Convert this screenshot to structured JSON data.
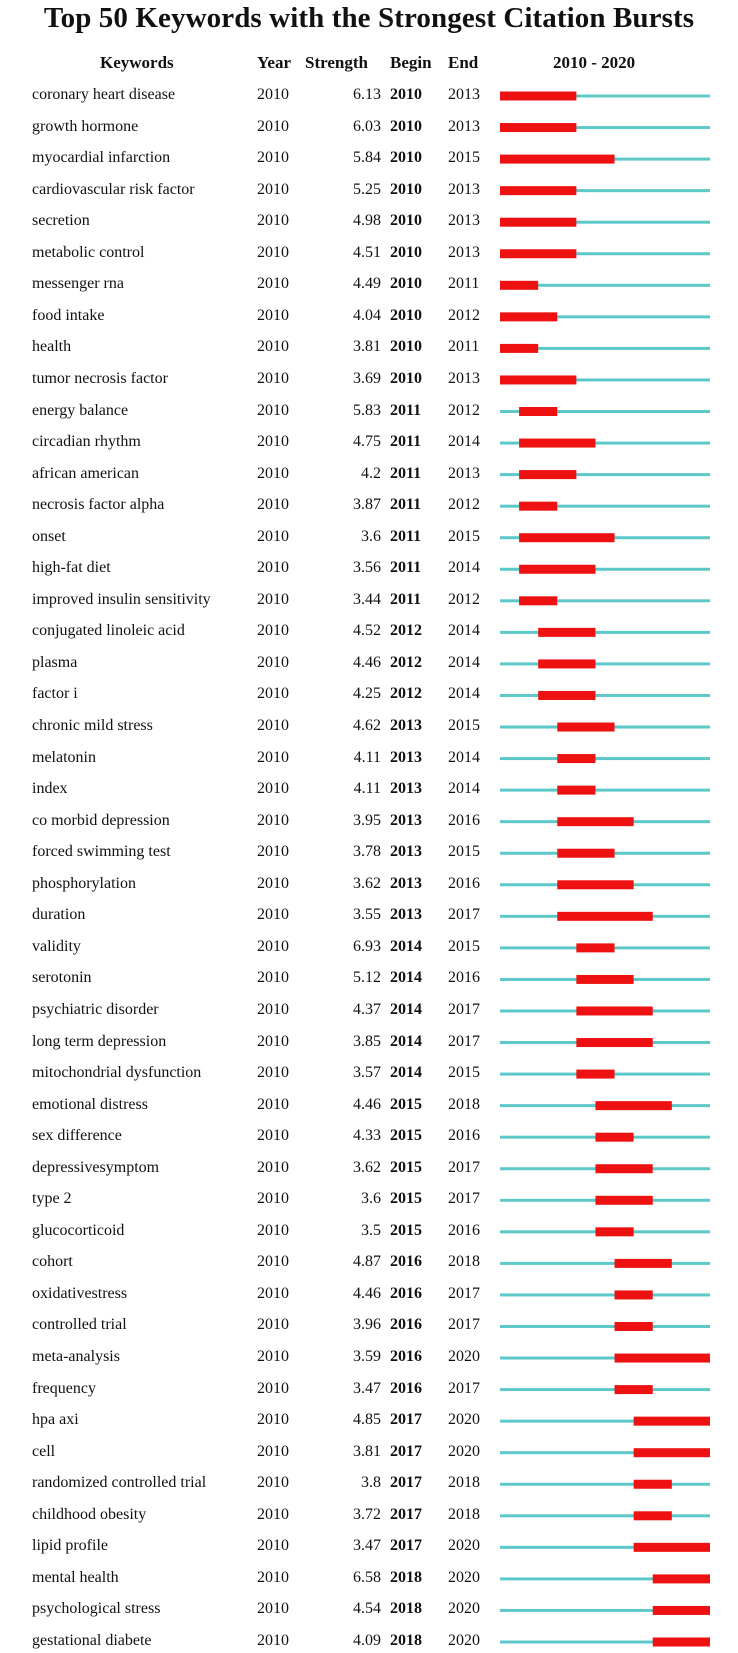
{
  "chart_data": {
    "type": "table",
    "title": "Top 50 Keywords with the Strongest Citation Bursts",
    "columns": [
      "Keywords",
      "Year",
      "Strength",
      "Begin",
      "End",
      "2010 - 2020"
    ],
    "timeline": {
      "start": 2010,
      "end": 2020
    },
    "colors": {
      "background_line": "#5cc8c8",
      "burst": "#ee1111"
    },
    "rows": [
      {
        "keyword": "coronary heart disease",
        "year": "2010",
        "strength": "6.13",
        "begin": "2010",
        "end": "2013"
      },
      {
        "keyword": "growth hormone",
        "year": "2010",
        "strength": "6.03",
        "begin": "2010",
        "end": "2013"
      },
      {
        "keyword": "myocardial infarction",
        "year": "2010",
        "strength": "5.84",
        "begin": "2010",
        "end": "2015"
      },
      {
        "keyword": "cardiovascular risk factor",
        "year": "2010",
        "strength": "5.25",
        "begin": "2010",
        "end": "2013"
      },
      {
        "keyword": "secretion",
        "year": "2010",
        "strength": "4.98",
        "begin": "2010",
        "end": "2013"
      },
      {
        "keyword": "metabolic control",
        "year": "2010",
        "strength": "4.51",
        "begin": "2010",
        "end": "2013"
      },
      {
        "keyword": "messenger rna",
        "year": "2010",
        "strength": "4.49",
        "begin": "2010",
        "end": "2011"
      },
      {
        "keyword": "food intake",
        "year": "2010",
        "strength": "4.04",
        "begin": "2010",
        "end": "2012"
      },
      {
        "keyword": "health",
        "year": "2010",
        "strength": "3.81",
        "begin": "2010",
        "end": "2011"
      },
      {
        "keyword": "tumor necrosis factor",
        "year": "2010",
        "strength": "3.69",
        "begin": "2010",
        "end": "2013"
      },
      {
        "keyword": "energy balance",
        "year": "2010",
        "strength": "5.83",
        "begin": "2011",
        "end": "2012"
      },
      {
        "keyword": "circadian rhythm",
        "year": "2010",
        "strength": "4.75",
        "begin": "2011",
        "end": "2014"
      },
      {
        "keyword": "african american",
        "year": "2010",
        "strength": "4.2",
        "begin": "2011",
        "end": "2013"
      },
      {
        "keyword": "necrosis factor alpha",
        "year": "2010",
        "strength": "3.87",
        "begin": "2011",
        "end": "2012"
      },
      {
        "keyword": "onset",
        "year": "2010",
        "strength": "3.6",
        "begin": "2011",
        "end": "2015"
      },
      {
        "keyword": "high-fat diet",
        "year": "2010",
        "strength": "3.56",
        "begin": "2011",
        "end": "2014"
      },
      {
        "keyword": "improved insulin sensitivity",
        "year": "2010",
        "strength": "3.44",
        "begin": "2011",
        "end": "2012"
      },
      {
        "keyword": "conjugated linoleic acid",
        "year": "2010",
        "strength": "4.52",
        "begin": "2012",
        "end": "2014"
      },
      {
        "keyword": "plasma",
        "year": "2010",
        "strength": "4.46",
        "begin": "2012",
        "end": "2014"
      },
      {
        "keyword": "factor i",
        "year": "2010",
        "strength": "4.25",
        "begin": "2012",
        "end": "2014"
      },
      {
        "keyword": "chronic mild stress",
        "year": "2010",
        "strength": "4.62",
        "begin": "2013",
        "end": "2015"
      },
      {
        "keyword": "melatonin",
        "year": "2010",
        "strength": "4.11",
        "begin": "2013",
        "end": "2014"
      },
      {
        "keyword": "index",
        "year": "2010",
        "strength": "4.11",
        "begin": "2013",
        "end": "2014"
      },
      {
        "keyword": "co morbid depression",
        "year": "2010",
        "strength": "3.95",
        "begin": "2013",
        "end": "2016"
      },
      {
        "keyword": "forced swimming test",
        "year": "2010",
        "strength": "3.78",
        "begin": "2013",
        "end": "2015"
      },
      {
        "keyword": "phosphorylation",
        "year": "2010",
        "strength": "3.62",
        "begin": "2013",
        "end": "2016"
      },
      {
        "keyword": "duration",
        "year": "2010",
        "strength": "3.55",
        "begin": "2013",
        "end": "2017"
      },
      {
        "keyword": "validity",
        "year": "2010",
        "strength": "6.93",
        "begin": "2014",
        "end": "2015"
      },
      {
        "keyword": "serotonin",
        "year": "2010",
        "strength": "5.12",
        "begin": "2014",
        "end": "2016"
      },
      {
        "keyword": "psychiatric disorder",
        "year": "2010",
        "strength": "4.37",
        "begin": "2014",
        "end": "2017"
      },
      {
        "keyword": "long term depression",
        "year": "2010",
        "strength": "3.85",
        "begin": "2014",
        "end": "2017"
      },
      {
        "keyword": "mitochondrial dysfunction",
        "year": "2010",
        "strength": "3.57",
        "begin": "2014",
        "end": "2015"
      },
      {
        "keyword": "emotional distress",
        "year": "2010",
        "strength": "4.46",
        "begin": "2015",
        "end": "2018"
      },
      {
        "keyword": "sex difference",
        "year": "2010",
        "strength": "4.33",
        "begin": "2015",
        "end": "2016"
      },
      {
        "keyword": "depressivesymptom",
        "year": "2010",
        "strength": "3.62",
        "begin": "2015",
        "end": "2017"
      },
      {
        "keyword": "type 2",
        "year": "2010",
        "strength": "3.6",
        "begin": "2015",
        "end": "2017"
      },
      {
        "keyword": "glucocorticoid",
        "year": "2010",
        "strength": "3.5",
        "begin": "2015",
        "end": "2016"
      },
      {
        "keyword": "cohort",
        "year": "2010",
        "strength": "4.87",
        "begin": "2016",
        "end": "2018"
      },
      {
        "keyword": "oxidativestress",
        "year": "2010",
        "strength": "4.46",
        "begin": "2016",
        "end": "2017"
      },
      {
        "keyword": "controlled trial",
        "year": "2010",
        "strength": "3.96",
        "begin": "2016",
        "end": "2017"
      },
      {
        "keyword": "meta-analysis",
        "year": "2010",
        "strength": "3.59",
        "begin": "2016",
        "end": "2020"
      },
      {
        "keyword": "frequency",
        "year": "2010",
        "strength": "3.47",
        "begin": "2016",
        "end": "2017"
      },
      {
        "keyword": "hpa axi",
        "year": "2010",
        "strength": "4.85",
        "begin": "2017",
        "end": "2020"
      },
      {
        "keyword": "cell",
        "year": "2010",
        "strength": "3.81",
        "begin": "2017",
        "end": "2020"
      },
      {
        "keyword": "randomized controlled trial",
        "year": "2010",
        "strength": "3.8",
        "begin": "2017",
        "end": "2018"
      },
      {
        "keyword": "childhood obesity",
        "year": "2010",
        "strength": "3.72",
        "begin": "2017",
        "end": "2018"
      },
      {
        "keyword": "lipid profile",
        "year": "2010",
        "strength": "3.47",
        "begin": "2017",
        "end": "2020"
      },
      {
        "keyword": "mental health",
        "year": "2010",
        "strength": "6.58",
        "begin": "2018",
        "end": "2020"
      },
      {
        "keyword": "psychological stress",
        "year": "2010",
        "strength": "4.54",
        "begin": "2018",
        "end": "2020"
      },
      {
        "keyword": "gestational diabete",
        "year": "2010",
        "strength": "4.09",
        "begin": "2018",
        "end": "2020"
      }
    ]
  }
}
